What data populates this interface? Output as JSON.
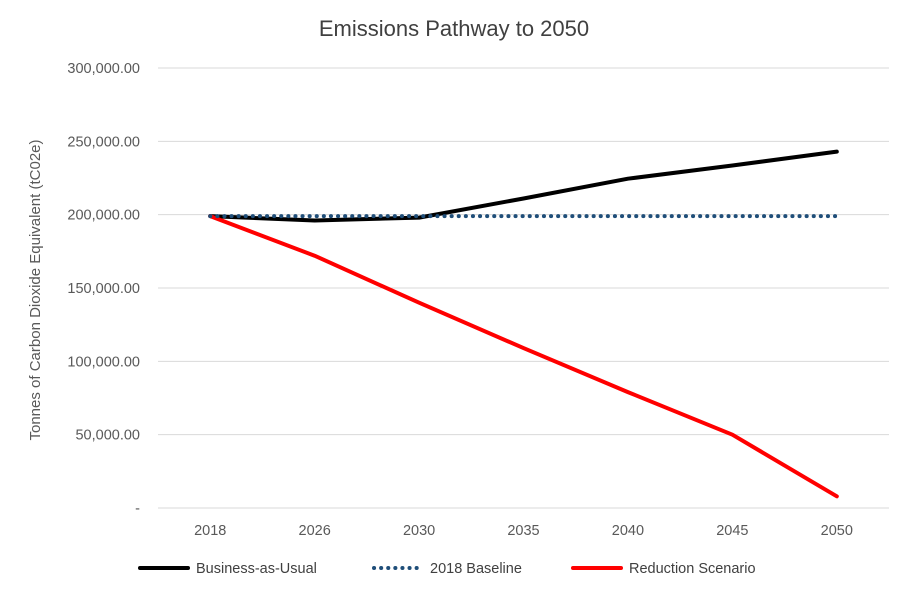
{
  "chart_data": {
    "type": "line",
    "title": "Emissions Pathway to 2050",
    "xlabel": "",
    "ylabel": "Tonnes of Carbon Dioxide Equivalent (tC02e)",
    "categories": [
      "2018",
      "2026",
      "2030",
      "2035",
      "2040",
      "2045",
      "2050"
    ],
    "ylim": [
      0,
      300000
    ],
    "yticks": [
      0,
      50000,
      100000,
      150000,
      200000,
      250000,
      300000
    ],
    "ytick_labels": [
      "-",
      "50,000.00",
      "100,000.00",
      "150,000.00",
      "200,000.00",
      "250,000.00",
      "300,000.00"
    ],
    "grid": true,
    "legend_position": "bottom",
    "series": [
      {
        "name": "Business-as-Usual",
        "color": "#000000",
        "style": "solid",
        "values": [
          199000,
          196000,
          198000,
          211000,
          224500,
          233500,
          243000
        ]
      },
      {
        "name": "2018 Baseline",
        "color": "#1F4E79",
        "style": "dotted",
        "values": [
          199000,
          199000,
          199000,
          199000,
          199000,
          199000,
          199000
        ]
      },
      {
        "name": "Reduction Scenario",
        "color": "#FF0000",
        "style": "solid",
        "values": [
          199000,
          172000,
          140000,
          109000,
          79000,
          50000,
          8000
        ]
      }
    ]
  }
}
